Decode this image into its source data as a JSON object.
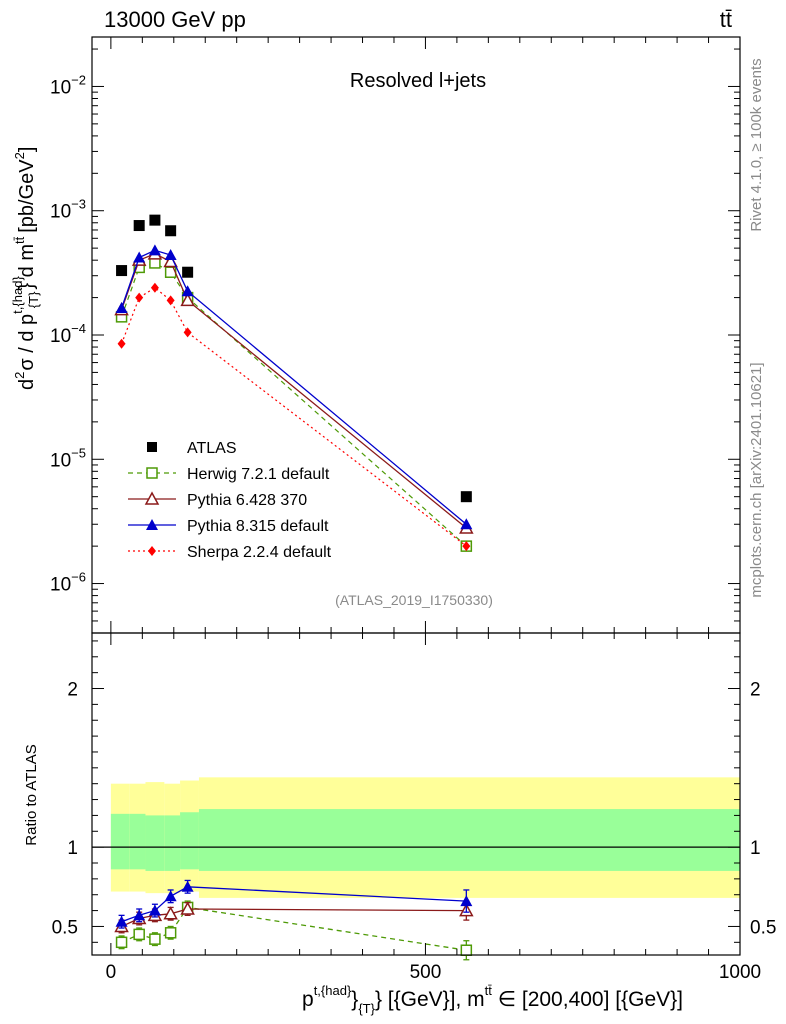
{
  "header": {
    "left": "13000 GeV pp",
    "right": "tt̄"
  },
  "side_text": {
    "rivet": "Rivet 4.1.0, ≥ 100k events",
    "mcplots": "mcplots.cern.ch [arXiv:2401.10621]"
  },
  "chart_data": [
    {
      "type": "scatter",
      "title": "Resolved l+jets",
      "watermark": "(ATLAS_2019_I1750330)",
      "ylabel_parts": {
        "d2": "d",
        "sup2": "2",
        "sigma": "σ / d p",
        "sup_had": "t,{had}",
        "sub_T": "{T}",
        "tail": "} d m",
        "sup_tt": "tt̄",
        "unit": "[pb/GeV",
        "unit_sup": "2",
        "close": "]"
      },
      "y_scale": "log",
      "ylim": [
        4e-07,
        0.025
      ],
      "y_ticks": [
        {
          "value": 1e-06,
          "label_base": "10",
          "label_exp": "−6"
        },
        {
          "value": 1e-05,
          "label_base": "10",
          "label_exp": "−5"
        },
        {
          "value": 0.0001,
          "label_base": "10",
          "label_exp": "−4"
        },
        {
          "value": 0.001,
          "label_base": "10",
          "label_exp": "−3"
        },
        {
          "value": 0.01,
          "label_base": "10",
          "label_exp": "−2"
        }
      ],
      "xlim": [
        -30,
        1000
      ],
      "legend_position": "bottom-left",
      "series": [
        {
          "name": "ATLAS",
          "marker": "square-filled",
          "color": "#000000",
          "line": "none",
          "x": [
            17,
            45,
            70,
            95,
            122,
            565
          ],
          "y": [
            0.00033,
            0.00076,
            0.00084,
            0.00069,
            0.00032,
            5e-06
          ]
        },
        {
          "name": "Herwig 7.2.1 default",
          "marker": "square-open",
          "color": "#4e9a06",
          "line": "dashed",
          "x": [
            17,
            45,
            70,
            95,
            122,
            565
          ],
          "y": [
            0.00014,
            0.00035,
            0.00038,
            0.00032,
            0.0002,
            2e-06
          ]
        },
        {
          "name": "Pythia 6.428 370",
          "marker": "triangle-open",
          "color": "#8b1a1a",
          "line": "solid",
          "x": [
            17,
            45,
            70,
            95,
            122,
            565
          ],
          "y": [
            0.00016,
            0.0004,
            0.00045,
            0.00039,
            0.00019,
            2.8e-06
          ]
        },
        {
          "name": "Pythia 8.315 default",
          "marker": "triangle-filled",
          "color": "#0000cc",
          "line": "solid",
          "x": [
            17,
            45,
            70,
            95,
            122,
            565
          ],
          "y": [
            0.000165,
            0.00042,
            0.00048,
            0.00044,
            0.000225,
            3e-06
          ]
        },
        {
          "name": "Sherpa 2.2.4 default",
          "marker": "diamond-filled",
          "color": "#ff0000",
          "line": "dotted",
          "x": [
            17,
            45,
            70,
            95,
            122,
            565
          ],
          "y": [
            8.5e-05,
            0.0002,
            0.00024,
            0.00019,
            0.000105,
            2e-06
          ]
        }
      ]
    },
    {
      "type": "scatter",
      "ylabel": "Ratio to ATLAS",
      "xlabel_parts": {
        "p": "p",
        "sup_had": "t,{had}",
        "mid": "}",
        "sub_T": "{T}",
        "rest": "} [{GeV}], m",
        "sup_tt": "tt̄",
        "range": " ∈ [200,400] [{GeV}]"
      },
      "ylim": [
        0.32,
        2.35
      ],
      "y_ticks": [
        0.5,
        1,
        2
      ],
      "y_tick_labels": [
        "0.5",
        "1",
        "2"
      ],
      "xlim": [
        -30,
        1000
      ],
      "x_ticks": [
        0,
        500,
        1000
      ],
      "x_tick_labels": [
        "0",
        "500",
        "1000"
      ],
      "reference_line": 1,
      "bands": {
        "edges": [
          0,
          30,
          55,
          85,
          110,
          140,
          1000
        ],
        "yellow_lo": [
          0.72,
          0.72,
          0.71,
          0.71,
          0.72,
          0.68
        ],
        "yellow_hi": [
          1.4,
          1.4,
          1.41,
          1.4,
          1.42,
          1.44
        ],
        "green_lo": [
          0.86,
          0.86,
          0.85,
          0.85,
          0.86,
          0.85
        ],
        "green_hi": [
          1.21,
          1.21,
          1.2,
          1.2,
          1.22,
          1.24
        ],
        "yellow_color": "#ffff99",
        "green_color": "#99ff99"
      },
      "series": [
        {
          "name": "Herwig 7.2.1 default",
          "marker": "square-open",
          "color": "#4e9a06",
          "line": "dashed",
          "x": [
            17,
            45,
            70,
            95,
            122,
            565
          ],
          "y": [
            0.4,
            0.45,
            0.42,
            0.46,
            0.62,
            0.35
          ],
          "err": [
            0.04,
            0.04,
            0.04,
            0.04,
            0.04,
            0.06
          ]
        },
        {
          "name": "Pythia 6.428 370",
          "marker": "triangle-open",
          "color": "#8b1a1a",
          "line": "solid",
          "x": [
            17,
            45,
            70,
            95,
            122,
            565
          ],
          "y": [
            0.5,
            0.55,
            0.57,
            0.58,
            0.61,
            0.6
          ],
          "err": [
            0.04,
            0.04,
            0.04,
            0.04,
            0.04,
            0.06
          ]
        },
        {
          "name": "Pythia 8.315 default",
          "marker": "triangle-filled",
          "color": "#0000cc",
          "line": "solid",
          "x": [
            17,
            45,
            70,
            95,
            122,
            565
          ],
          "y": [
            0.53,
            0.57,
            0.6,
            0.69,
            0.75,
            0.66
          ],
          "err": [
            0.04,
            0.04,
            0.04,
            0.04,
            0.04,
            0.07
          ]
        }
      ]
    }
  ]
}
